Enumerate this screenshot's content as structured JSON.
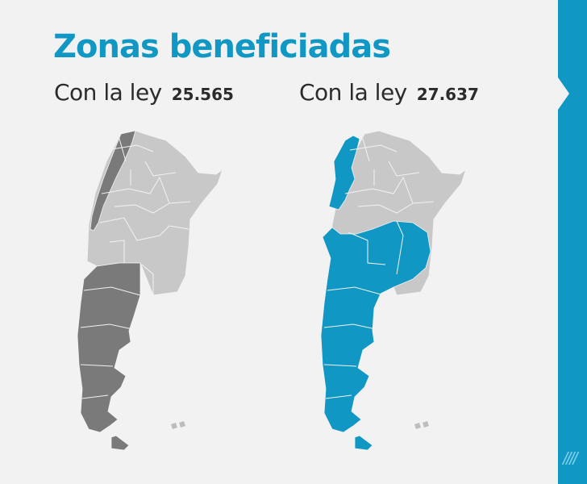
{
  "title": "Zonas beneficiadas",
  "maps": [
    {
      "prefix": "Con la ley",
      "law_number": "25.565",
      "highlight_color": "#7a7a7a",
      "base_color": "#c8c8c8"
    },
    {
      "prefix": "Con la ley",
      "law_number": "27.637",
      "highlight_color": "#1097c4",
      "base_color": "#c8c8c8"
    }
  ],
  "colors": {
    "title": "#1097c4",
    "text": "#2b2b2b",
    "background": "#f2f2f2",
    "side_bar": "#1097c4",
    "province_border": "#f2f2f2"
  },
  "icons": {
    "side_arrow": "chevron-right-icon",
    "decoration": "slash-lines-icon"
  }
}
